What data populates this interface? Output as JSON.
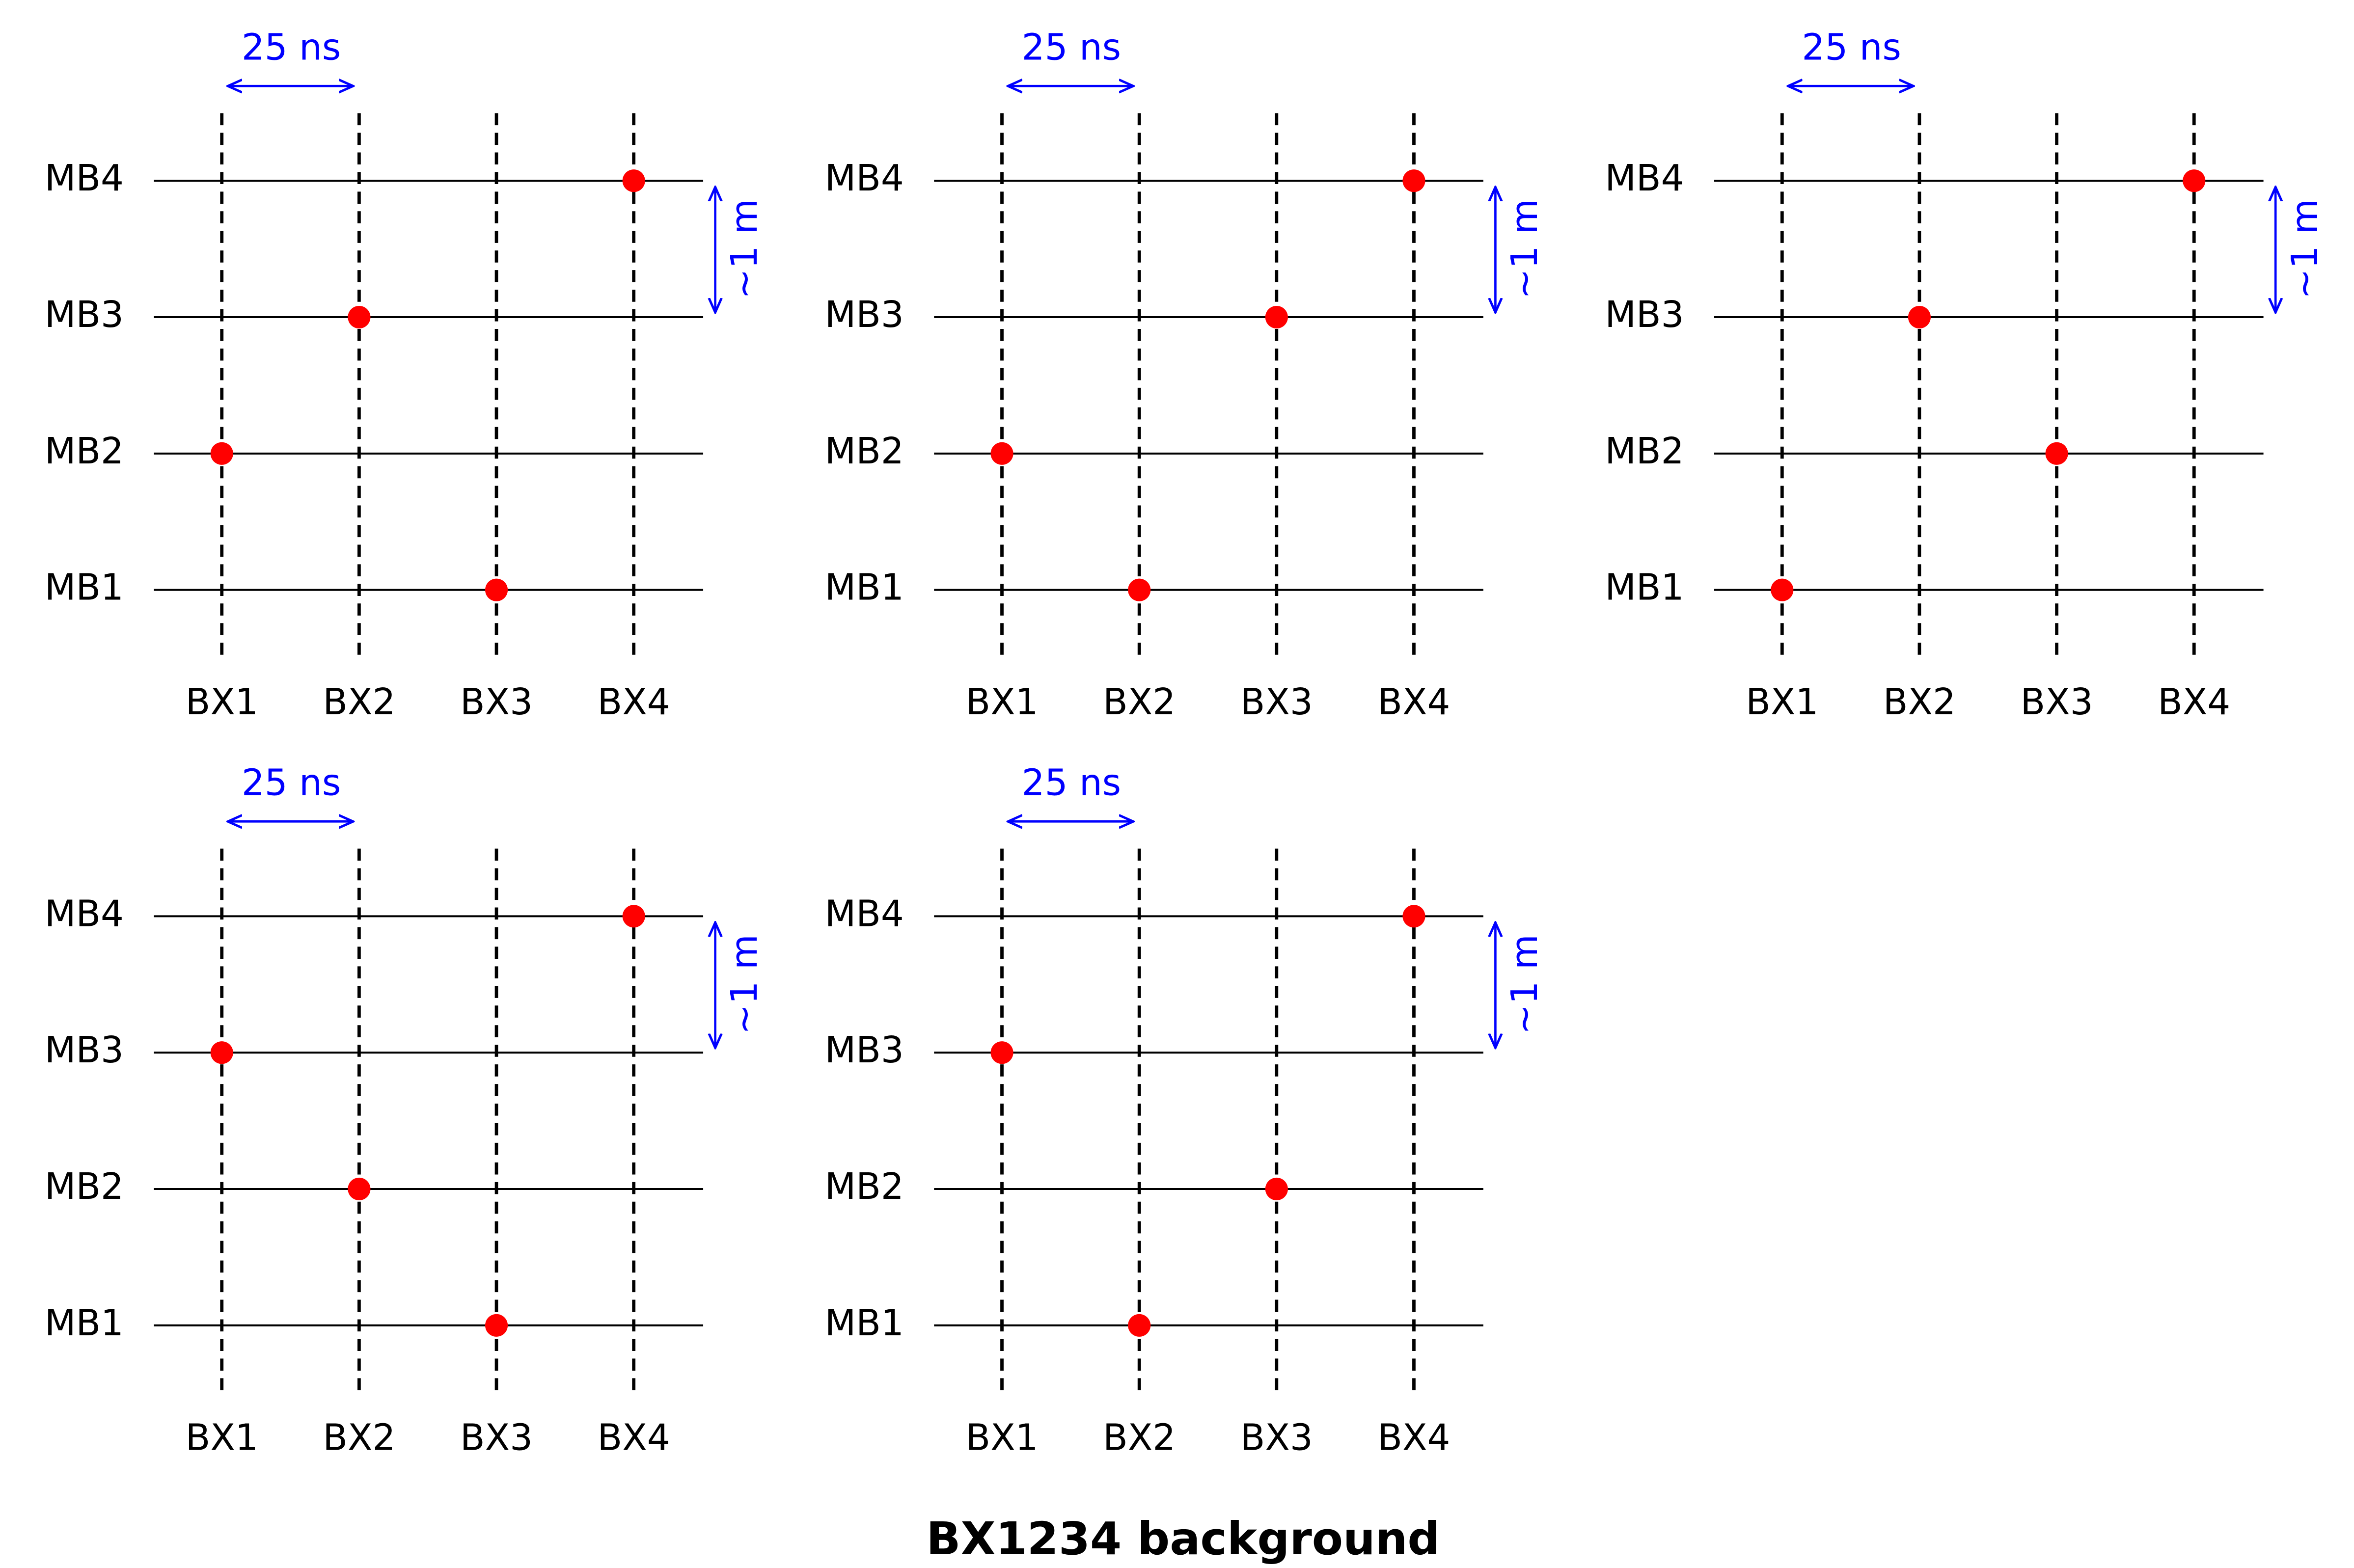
{
  "title": "BX1234 background",
  "chart_data": [
    {
      "type": "scatter",
      "xticks": [
        "BX1",
        "BX2",
        "BX3",
        "BX4"
      ],
      "yticks": [
        "MB1",
        "MB2",
        "MB3",
        "MB4"
      ],
      "x": [
        "BX3",
        "BX1",
        "BX2",
        "BX4"
      ],
      "y": [
        "MB1",
        "MB2",
        "MB3",
        "MB4"
      ],
      "color": "#ff0000",
      "annotations": [
        "25 ns",
        "~1 m"
      ]
    },
    {
      "type": "scatter",
      "xticks": [
        "BX1",
        "BX2",
        "BX3",
        "BX4"
      ],
      "yticks": [
        "MB1",
        "MB2",
        "MB3",
        "MB4"
      ],
      "x": [
        "BX2",
        "BX1",
        "BX3",
        "BX4"
      ],
      "y": [
        "MB1",
        "MB2",
        "MB3",
        "MB4"
      ],
      "color": "#ff0000",
      "annotations": [
        "25 ns",
        "~1 m"
      ]
    },
    {
      "type": "scatter",
      "xticks": [
        "BX1",
        "BX2",
        "BX3",
        "BX4"
      ],
      "yticks": [
        "MB1",
        "MB2",
        "MB3",
        "MB4"
      ],
      "x": [
        "BX1",
        "BX3",
        "BX2",
        "BX4"
      ],
      "y": [
        "MB1",
        "MB2",
        "MB3",
        "MB4"
      ],
      "color": "#ff0000",
      "annotations": [
        "25 ns",
        "~1 m"
      ]
    },
    {
      "type": "scatter",
      "xticks": [
        "BX1",
        "BX2",
        "BX3",
        "BX4"
      ],
      "yticks": [
        "MB1",
        "MB2",
        "MB3",
        "MB4"
      ],
      "x": [
        "BX3",
        "BX2",
        "BX1",
        "BX4"
      ],
      "y": [
        "MB1",
        "MB2",
        "MB3",
        "MB4"
      ],
      "color": "#ff0000",
      "annotations": [
        "25 ns",
        "~1 m"
      ]
    },
    {
      "type": "scatter",
      "xticks": [
        "BX1",
        "BX2",
        "BX3",
        "BX4"
      ],
      "yticks": [
        "MB1",
        "MB2",
        "MB3",
        "MB4"
      ],
      "x": [
        "BX2",
        "BX3",
        "BX1",
        "BX4"
      ],
      "y": [
        "MB1",
        "MB2",
        "MB3",
        "MB4"
      ],
      "color": "#ff0000",
      "annotations": [
        "25 ns",
        "~1 m"
      ]
    }
  ]
}
